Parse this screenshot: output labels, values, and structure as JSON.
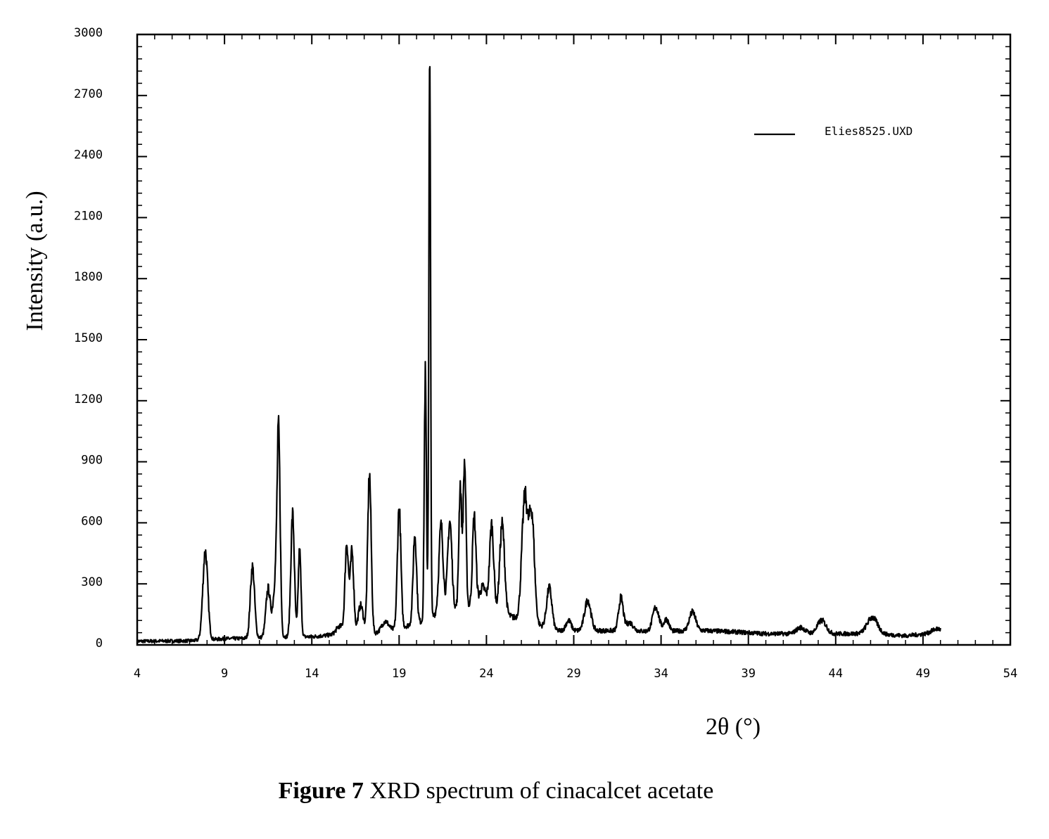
{
  "chart_data": {
    "type": "line",
    "xlabel": "2θ (°)",
    "ylabel": "Intensity (a.u.)",
    "xlim": [
      4,
      54
    ],
    "ylim": [
      0,
      3000
    ],
    "x_ticks": [
      4,
      9,
      14,
      19,
      24,
      29,
      34,
      39,
      44,
      49,
      54
    ],
    "y_ticks": [
      0,
      300,
      600,
      900,
      1200,
      1500,
      1800,
      2100,
      2400,
      2700,
      3000
    ],
    "grid": false,
    "legend": "top-right",
    "series": [
      {
        "name": "Elies8525.UXD",
        "color": "#000000",
        "baseline": [
          [
            4.0,
            18
          ],
          [
            7.0,
            20
          ],
          [
            9.0,
            30
          ],
          [
            10.0,
            32
          ],
          [
            12.5,
            40
          ],
          [
            14.0,
            40
          ],
          [
            15.5,
            52
          ],
          [
            17.5,
            55
          ],
          [
            18.5,
            70
          ],
          [
            20.5,
            120
          ],
          [
            21.5,
            170
          ],
          [
            23.0,
            190
          ],
          [
            25.0,
            150
          ],
          [
            26.5,
            110
          ],
          [
            28.0,
            70
          ],
          [
            30.0,
            70
          ],
          [
            32.0,
            70
          ],
          [
            34.0,
            65
          ],
          [
            36.0,
            72
          ],
          [
            38.0,
            65
          ],
          [
            40.0,
            55
          ],
          [
            42.0,
            55
          ],
          [
            44.0,
            55
          ],
          [
            46.0,
            55
          ],
          [
            48.0,
            45
          ],
          [
            50.0,
            60
          ]
        ],
        "peaks": [
          [
            7.9,
            435,
            0.14
          ],
          [
            10.6,
            350,
            0.12
          ],
          [
            11.5,
            240,
            0.13
          ],
          [
            11.9,
            250,
            0.12
          ],
          [
            12.1,
            960,
            0.09
          ],
          [
            12.9,
            600,
            0.1
          ],
          [
            13.3,
            420,
            0.08
          ],
          [
            15.6,
            40,
            0.2
          ],
          [
            16.0,
            440,
            0.1
          ],
          [
            16.3,
            400,
            0.1
          ],
          [
            16.8,
            140,
            0.15
          ],
          [
            17.3,
            780,
            0.1
          ],
          [
            18.2,
            50,
            0.2
          ],
          [
            19.0,
            590,
            0.1
          ],
          [
            19.9,
            440,
            0.1
          ],
          [
            20.5,
            1200,
            0.06
          ],
          [
            20.75,
            2700,
            0.05
          ],
          [
            21.4,
            420,
            0.12
          ],
          [
            21.9,
            430,
            0.12
          ],
          [
            22.5,
            600,
            0.08
          ],
          [
            22.75,
            710,
            0.08
          ],
          [
            23.3,
            440,
            0.1
          ],
          [
            23.8,
            110,
            0.2
          ],
          [
            24.3,
            420,
            0.12
          ],
          [
            24.9,
            440,
            0.14
          ],
          [
            26.2,
            600,
            0.17
          ],
          [
            26.6,
            520,
            0.15
          ],
          [
            27.6,
            200,
            0.15
          ],
          [
            28.7,
            50,
            0.15
          ],
          [
            29.8,
            150,
            0.18
          ],
          [
            31.7,
            160,
            0.13
          ],
          [
            32.2,
            40,
            0.2
          ],
          [
            33.7,
            120,
            0.18
          ],
          [
            34.3,
            60,
            0.15
          ],
          [
            35.8,
            90,
            0.18
          ],
          [
            42.0,
            30,
            0.25
          ],
          [
            43.2,
            65,
            0.25
          ],
          [
            46.1,
            80,
            0.3
          ],
          [
            49.8,
            20,
            0.3
          ]
        ]
      }
    ]
  },
  "caption": {
    "bold": "Figure 7",
    "text": " XRD spectrum of cinacalcet acetate"
  }
}
